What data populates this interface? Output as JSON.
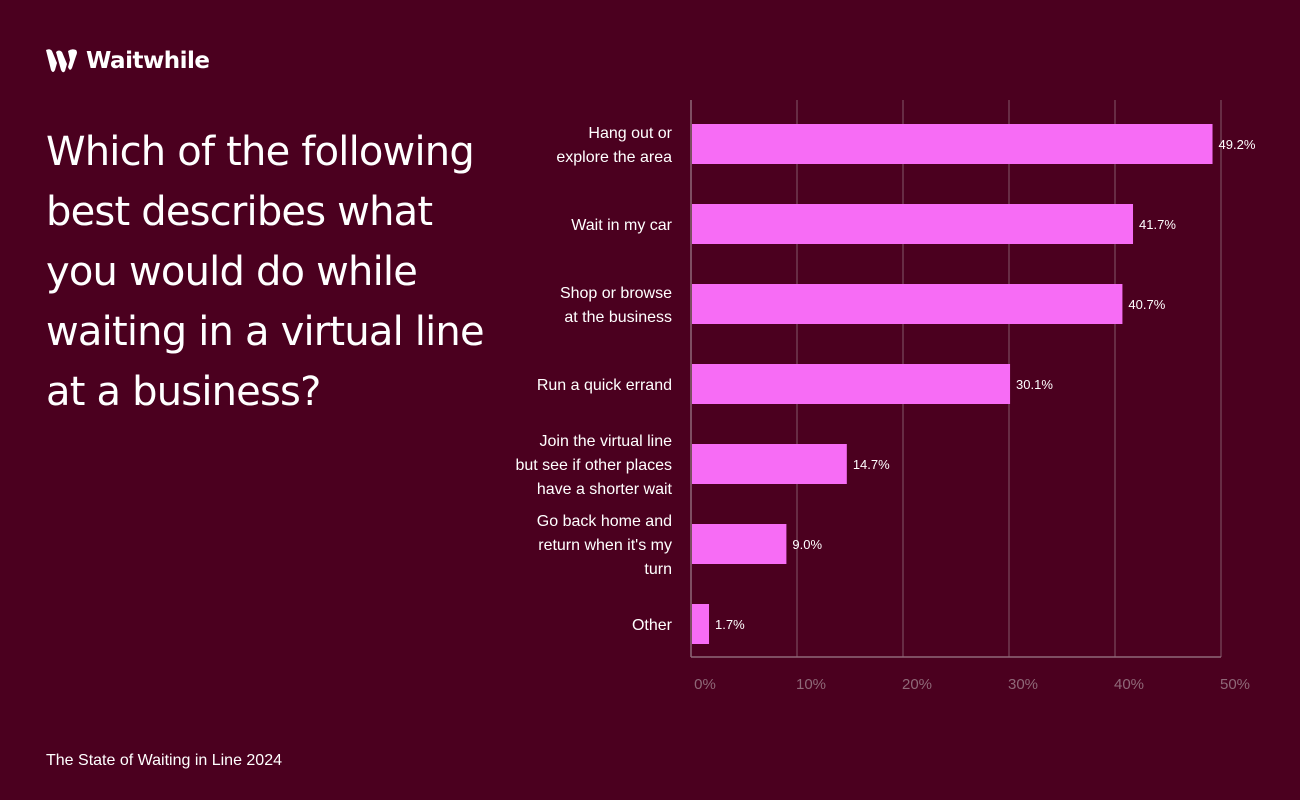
{
  "brand": {
    "name": "Waitwhile",
    "logo_icon": "waitwhile-w-logo-icon"
  },
  "question": "Which of the following best describes what you would do while waiting in a virtual line at a business?",
  "footer": "The State of Waiting in Line 2024",
  "colors": {
    "background": "#4b001f",
    "bar": "#f76cf5",
    "gridline": "#7a4a5e",
    "axis": "#8f6878",
    "tick_text": "#8f6878",
    "text": "#ffffff"
  },
  "chart_data": {
    "type": "bar",
    "orientation": "horizontal",
    "categories": [
      [
        "Hang out or",
        "explore the area"
      ],
      [
        "Wait in my car"
      ],
      [
        "Shop or browse",
        "at the business"
      ],
      [
        "Run a quick errand"
      ],
      [
        "Join the virtual line",
        "but see if other places",
        "have a shorter wait"
      ],
      [
        "Go back home and",
        "return when it's my",
        "turn"
      ],
      [
        "Other"
      ]
    ],
    "values": [
      49.2,
      41.7,
      40.7,
      30.1,
      14.7,
      9.0,
      1.7
    ],
    "value_labels": [
      "49.2%",
      "41.7%",
      "40.7%",
      "30.1%",
      "14.7%",
      "9.0%",
      "1.7%"
    ],
    "xlim": [
      0,
      50
    ],
    "xticks": [
      0,
      10,
      20,
      30,
      40,
      50
    ],
    "xtick_labels": [
      "0%",
      "10%",
      "20%",
      "30%",
      "40%",
      "50%"
    ],
    "grid": true,
    "legend": "none"
  }
}
